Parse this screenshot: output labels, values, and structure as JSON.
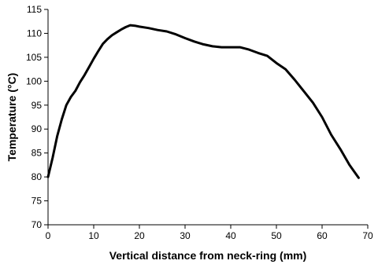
{
  "chart_data": {
    "type": "line",
    "xlabel": "Vertical distance from neck-ring (mm)",
    "ylabel": "Temperature (°C)",
    "xlim": [
      0,
      70
    ],
    "ylim": [
      70,
      115
    ],
    "xticks": [
      0,
      10,
      20,
      30,
      40,
      50,
      60,
      70
    ],
    "yticks": [
      70,
      75,
      80,
      85,
      90,
      95,
      100,
      105,
      110,
      115
    ],
    "grid": false,
    "series": [
      {
        "x": [
          0,
          1,
          2,
          3,
          4,
          5,
          6,
          7,
          8,
          9,
          10,
          11,
          12,
          13,
          14,
          15,
          16,
          17,
          18,
          19,
          20,
          22,
          24,
          26,
          28,
          30,
          32,
          34,
          36,
          38,
          40,
          42,
          44,
          46,
          48,
          50,
          52,
          54,
          56,
          58,
          60,
          62,
          64,
          66,
          68
        ],
        "y": [
          80,
          84,
          88.5,
          92,
          95,
          96.7,
          98,
          99.8,
          101.3,
          103,
          104.7,
          106.3,
          107.8,
          108.8,
          109.6,
          110.2,
          110.8,
          111.3,
          111.7,
          111.6,
          111.4,
          111.1,
          110.7,
          110.4,
          109.8,
          109,
          108.3,
          107.7,
          107.3,
          107.1,
          107.1,
          107.1,
          106.6,
          105.9,
          105.3,
          103.8,
          102.5,
          100.3,
          97.9,
          95.5,
          92.5,
          88.8,
          85.8,
          82.5,
          79.8
        ],
        "color": "#000000"
      }
    ]
  }
}
